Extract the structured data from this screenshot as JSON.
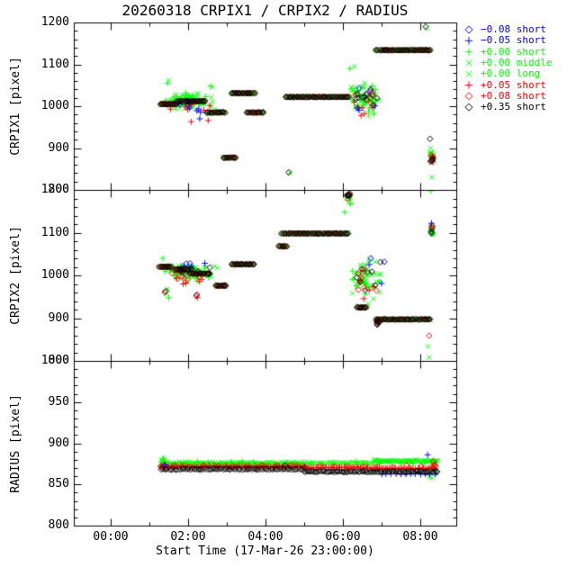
{
  "chart_data": {
    "type": "scatter",
    "title": "20260318 CRPIX1 / CRPIX2 / RADIUS",
    "x": {
      "label": "Start Time (17-Mar-26 23:00:00)",
      "tick_labels": [
        "00:00",
        "02:00",
        "04:00",
        "06:00",
        "08:00"
      ],
      "tick_hours": [
        0,
        2,
        4,
        6,
        8
      ],
      "minor_tick_hours": [
        1,
        3,
        5,
        7
      ],
      "range_hours": [
        -0.95,
        8.93
      ]
    },
    "colors": {
      "background": "#ffffff",
      "frame": "#000000"
    },
    "series": [
      {
        "marker": "diamond",
        "color": "#0000ff",
        "label": "−0.08 short"
      },
      {
        "marker": "plus",
        "color": "#0000ff",
        "label": "−0.05 short"
      },
      {
        "marker": "plus",
        "color": "#00ff00",
        "label": "+0.00 short"
      },
      {
        "marker": "x",
        "color": "#00ff00",
        "label": "+0.00 middle"
      },
      {
        "marker": "x",
        "color": "#00ff00",
        "label": "+0.00 long"
      },
      {
        "marker": "plus",
        "color": "#ff0000",
        "label": "+0.05 short"
      },
      {
        "marker": "diamond",
        "color": "#ff0000",
        "label": "+0.08 short"
      },
      {
        "marker": "diamond",
        "color": "#000000",
        "label": "+0.35 short"
      }
    ],
    "encoding": {
      "runs": "[series,hour_start,hour_end,value,count,value_jitter]",
      "clusters": "[series,center_hour,center_value,hour_radius,value_radius,count]",
      "points": "[series,hour,value]"
    },
    "panels": [
      {
        "name": "CRPIX1",
        "ylabel": "CRPIX1 [pixel]",
        "ylim": [
          800,
          1200
        ],
        "yticks": [
          800,
          900,
          1000,
          1100,
          1200
        ],
        "minor_step": 20,
        "runs": [
          [
            3,
            1.28,
            1.7,
            1005,
            14,
            2.5
          ],
          [
            6,
            1.3,
            1.68,
            1005,
            8,
            1.2
          ],
          [
            7,
            1.28,
            1.7,
            1005,
            12,
            0.8
          ],
          [
            3,
            1.72,
            2.44,
            1012,
            22,
            2.5
          ],
          [
            6,
            1.74,
            2.42,
            1012,
            12,
            1.2
          ],
          [
            7,
            1.72,
            2.44,
            1012,
            20,
            0.8
          ],
          [
            3,
            2.49,
            2.95,
            985,
            14,
            2.5
          ],
          [
            6,
            2.51,
            2.93,
            985,
            8,
            1.2
          ],
          [
            7,
            2.49,
            2.95,
            985,
            13,
            0.8
          ],
          [
            3,
            3.12,
            3.72,
            1031,
            18,
            2.0
          ],
          [
            6,
            3.14,
            3.7,
            1031,
            9,
            1.0
          ],
          [
            7,
            3.12,
            3.72,
            1031,
            16,
            0.8
          ],
          [
            3,
            3.53,
            3.95,
            985,
            12,
            1.5
          ],
          [
            6,
            3.56,
            3.92,
            985,
            6,
            1.0
          ],
          [
            7,
            3.53,
            3.95,
            985,
            11,
            0.8
          ],
          [
            3,
            2.91,
            3.23,
            877,
            9,
            1.2
          ],
          [
            6,
            2.94,
            3.2,
            877,
            5,
            1.0
          ],
          [
            7,
            2.91,
            3.23,
            877,
            9,
            0.7
          ],
          [
            3,
            4.52,
            6.16,
            1022,
            44,
            1.5
          ],
          [
            6,
            4.56,
            6.12,
            1022,
            20,
            1.0
          ],
          [
            7,
            4.52,
            6.16,
            1022,
            42,
            0.7
          ],
          [
            3,
            6.86,
            8.26,
            1134,
            38,
            1.5
          ],
          [
            6,
            6.9,
            8.22,
            1134,
            16,
            1.0
          ],
          [
            7,
            6.86,
            8.26,
            1134,
            36,
            0.7
          ]
        ],
        "clusters": [
          [
            2,
            2.05,
            1012,
            0.75,
            20,
            40
          ],
          [
            3,
            2.05,
            1006,
            0.78,
            18,
            40
          ],
          [
            4,
            2.0,
            1016,
            0.7,
            16,
            28
          ],
          [
            5,
            2.1,
            1000,
            0.6,
            18,
            8
          ],
          [
            1,
            2.2,
            995,
            0.5,
            20,
            5
          ],
          [
            0,
            1.9,
            1003,
            0.5,
            12,
            4
          ],
          [
            2,
            6.55,
            1020,
            0.45,
            42,
            20
          ],
          [
            3,
            6.55,
            1015,
            0.45,
            50,
            26
          ],
          [
            4,
            6.6,
            1030,
            0.4,
            45,
            16
          ],
          [
            6,
            6.55,
            1020,
            0.4,
            30,
            8
          ],
          [
            7,
            6.6,
            1025,
            0.42,
            35,
            10
          ],
          [
            5,
            6.5,
            1000,
            0.35,
            30,
            5
          ],
          [
            0,
            6.7,
            1045,
            0.3,
            25,
            3
          ],
          [
            1,
            6.65,
            1005,
            0.3,
            25,
            3
          ],
          [
            4,
            8.3,
            880,
            0.06,
            25,
            8
          ],
          [
            3,
            8.29,
            885,
            0.05,
            18,
            5
          ],
          [
            6,
            8.3,
            878,
            0.04,
            14,
            4
          ],
          [
            7,
            8.3,
            872,
            0.04,
            12,
            4
          ],
          [
            5,
            8.31,
            880,
            0.03,
            10,
            3
          ]
        ],
        "points": [
          [
            7,
            4.6,
            842
          ],
          [
            4,
            4.63,
            841
          ],
          [
            7,
            8.14,
            1190
          ],
          [
            4,
            8.17,
            1186
          ],
          [
            4,
            1.5,
            1062
          ],
          [
            2,
            1.47,
            1055
          ],
          [
            2,
            2.58,
            1048
          ],
          [
            4,
            2.62,
            1045
          ],
          [
            5,
            2.08,
            963
          ],
          [
            5,
            2.52,
            966
          ],
          [
            1,
            2.3,
            970
          ],
          [
            7,
            8.25,
            922
          ],
          [
            4,
            8.3,
            830
          ],
          [
            2,
            6.18,
            1090
          ],
          [
            4,
            6.3,
            1095
          ]
        ]
      },
      {
        "name": "CRPIX2",
        "ylabel": "CRPIX2 [pixel]",
        "ylim": [
          800,
          1200
        ],
        "yticks": [
          800,
          900,
          1000,
          1100,
          1200
        ],
        "minor_step": 20,
        "runs": [
          [
            3,
            1.26,
            1.56,
            1020,
            10,
            2.0
          ],
          [
            6,
            1.28,
            1.54,
            1020,
            6,
            1.2
          ],
          [
            7,
            1.26,
            1.56,
            1020,
            9,
            0.8
          ],
          [
            3,
            1.67,
            2.1,
            1014,
            14,
            2.5
          ],
          [
            6,
            1.69,
            2.08,
            1014,
            7,
            1.2
          ],
          [
            7,
            1.67,
            2.1,
            1014,
            12,
            0.8
          ],
          [
            3,
            2.1,
            2.56,
            1004,
            14,
            2.5
          ],
          [
            6,
            2.12,
            2.54,
            1004,
            7,
            1.2
          ],
          [
            7,
            2.1,
            2.56,
            1004,
            12,
            0.8
          ],
          [
            3,
            2.72,
            2.98,
            976,
            8,
            2.0
          ],
          [
            6,
            2.74,
            2.96,
            976,
            5,
            1.0
          ],
          [
            7,
            2.72,
            2.98,
            976,
            8,
            0.8
          ],
          [
            3,
            3.12,
            3.7,
            1026,
            18,
            1.5
          ],
          [
            6,
            3.14,
            3.68,
            1026,
            9,
            1.0
          ],
          [
            7,
            3.12,
            3.7,
            1026,
            16,
            0.8
          ],
          [
            3,
            4.35,
            4.55,
            1068,
            6,
            1.5
          ],
          [
            6,
            4.36,
            4.54,
            1068,
            4,
            1.0
          ],
          [
            7,
            4.35,
            4.55,
            1068,
            6,
            0.8
          ],
          [
            3,
            4.42,
            6.14,
            1098,
            45,
            1.5
          ],
          [
            6,
            4.45,
            6.11,
            1098,
            20,
            1.0
          ],
          [
            7,
            4.42,
            6.14,
            1098,
            43,
            0.7
          ],
          [
            3,
            6.37,
            6.6,
            925,
            8,
            1.5
          ],
          [
            6,
            6.39,
            6.58,
            925,
            5,
            1.0
          ],
          [
            7,
            6.37,
            6.6,
            925,
            8,
            0.8
          ],
          [
            3,
            6.86,
            8.26,
            897,
            36,
            1.5
          ],
          [
            6,
            6.9,
            8.22,
            897,
            16,
            1.0
          ],
          [
            7,
            6.86,
            8.26,
            897,
            34,
            0.7
          ]
        ],
        "clusters": [
          [
            2,
            2.0,
            1008,
            0.7,
            25,
            30
          ],
          [
            3,
            2.05,
            1005,
            0.72,
            22,
            35
          ],
          [
            4,
            2.0,
            1012,
            0.65,
            18,
            22
          ],
          [
            5,
            2.1,
            995,
            0.55,
            20,
            6
          ],
          [
            6,
            2.0,
            1000,
            0.6,
            18,
            8
          ],
          [
            7,
            2.05,
            1008,
            0.65,
            15,
            8
          ],
          [
            1,
            2.15,
            1020,
            0.4,
            15,
            3
          ],
          [
            0,
            2.1,
            1025,
            0.35,
            10,
            2
          ],
          [
            3,
            6.15,
            1183,
            0.1,
            10,
            6
          ],
          [
            6,
            6.14,
            1185,
            0.08,
            8,
            4
          ],
          [
            7,
            6.16,
            1186,
            0.09,
            10,
            5
          ],
          [
            2,
            6.2,
            1170,
            0.05,
            8,
            2
          ],
          [
            2,
            6.6,
            990,
            0.42,
            50,
            16
          ],
          [
            3,
            6.62,
            985,
            0.45,
            55,
            24
          ],
          [
            4,
            6.65,
            1000,
            0.4,
            45,
            14
          ],
          [
            6,
            6.6,
            990,
            0.38,
            40,
            7
          ],
          [
            7,
            6.62,
            995,
            0.4,
            40,
            8
          ],
          [
            5,
            6.55,
            975,
            0.35,
            35,
            5
          ],
          [
            3,
            8.3,
            1108,
            0.05,
            22,
            8
          ],
          [
            2,
            8.29,
            1100,
            0.05,
            15,
            4
          ],
          [
            6,
            8.3,
            1110,
            0.04,
            15,
            3
          ],
          [
            7,
            8.31,
            1105,
            0.04,
            12,
            3
          ],
          [
            6,
            6.9,
            892,
            0.06,
            8,
            5
          ],
          [
            7,
            6.92,
            890,
            0.06,
            8,
            5
          ]
        ],
        "points": [
          [
            2,
            6.05,
            1148
          ],
          [
            7,
            1.42,
            963
          ],
          [
            6,
            1.4,
            960
          ],
          [
            3,
            1.44,
            957
          ],
          [
            3,
            1.47,
            968
          ],
          [
            2,
            1.5,
            948
          ],
          [
            2,
            1.35,
            1040
          ],
          [
            6,
            2.21,
            952
          ],
          [
            7,
            2.23,
            955
          ],
          [
            5,
            2.24,
            948
          ],
          [
            0,
            7.07,
            1032
          ],
          [
            1,
            7.0,
            981
          ],
          [
            1,
            6.68,
            1025
          ],
          [
            0,
            6.72,
            1040
          ],
          [
            6,
            8.23,
            859
          ],
          [
            4,
            8.2,
            834
          ],
          [
            4,
            8.23,
            808
          ],
          [
            2,
            8.28,
            1198
          ],
          [
            1,
            8.29,
            1122
          ]
        ]
      },
      {
        "name": "RADIUS",
        "ylabel": "RADIUS [pixel]",
        "ylim": [
          800,
          1000
        ],
        "yticks": [
          800,
          850,
          900,
          950,
          1000
        ],
        "minor_step": 10,
        "runs": [
          [
            4,
            1.3,
            6.8,
            876,
            120,
            1.8
          ],
          [
            3,
            1.32,
            5.0,
            875,
            50,
            1.5
          ],
          [
            4,
            6.8,
            8.45,
            878.5,
            45,
            1.8
          ],
          [
            3,
            6.8,
            8.45,
            878,
            28,
            1.5
          ],
          [
            2,
            1.35,
            8.4,
            876,
            25,
            2.5
          ],
          [
            5,
            1.3,
            5.0,
            872,
            70,
            1.2
          ],
          [
            5,
            5.0,
            6.9,
            870.5,
            40,
            1.0
          ],
          [
            5,
            6.9,
            8.4,
            869.5,
            30,
            1.0
          ],
          [
            6,
            1.3,
            8.4,
            872,
            20,
            1.8
          ],
          [
            7,
            1.3,
            5.0,
            868.5,
            75,
            0.8
          ],
          [
            7,
            5.0,
            8.45,
            865.5,
            80,
            0.8
          ],
          [
            1,
            7.0,
            8.38,
            862.5,
            12,
            0.5
          ]
        ],
        "clusters": [
          [
            3,
            1.36,
            874,
            0.06,
            10,
            8
          ],
          [
            2,
            1.36,
            878,
            0.05,
            8,
            5
          ],
          [
            6,
            1.38,
            872,
            0.04,
            6,
            3
          ],
          [
            3,
            8.36,
            870,
            0.06,
            10,
            6
          ],
          [
            6,
            8.35,
            874,
            0.04,
            8,
            3
          ]
        ],
        "points": [
          [
            1,
            8.19,
            886
          ],
          [
            1,
            1.4,
            874
          ],
          [
            7,
            4.51,
            873
          ],
          [
            6,
            8.33,
            871
          ],
          [
            4,
            8.3,
            858
          ],
          [
            4,
            8.23,
            859
          ]
        ]
      }
    ]
  }
}
